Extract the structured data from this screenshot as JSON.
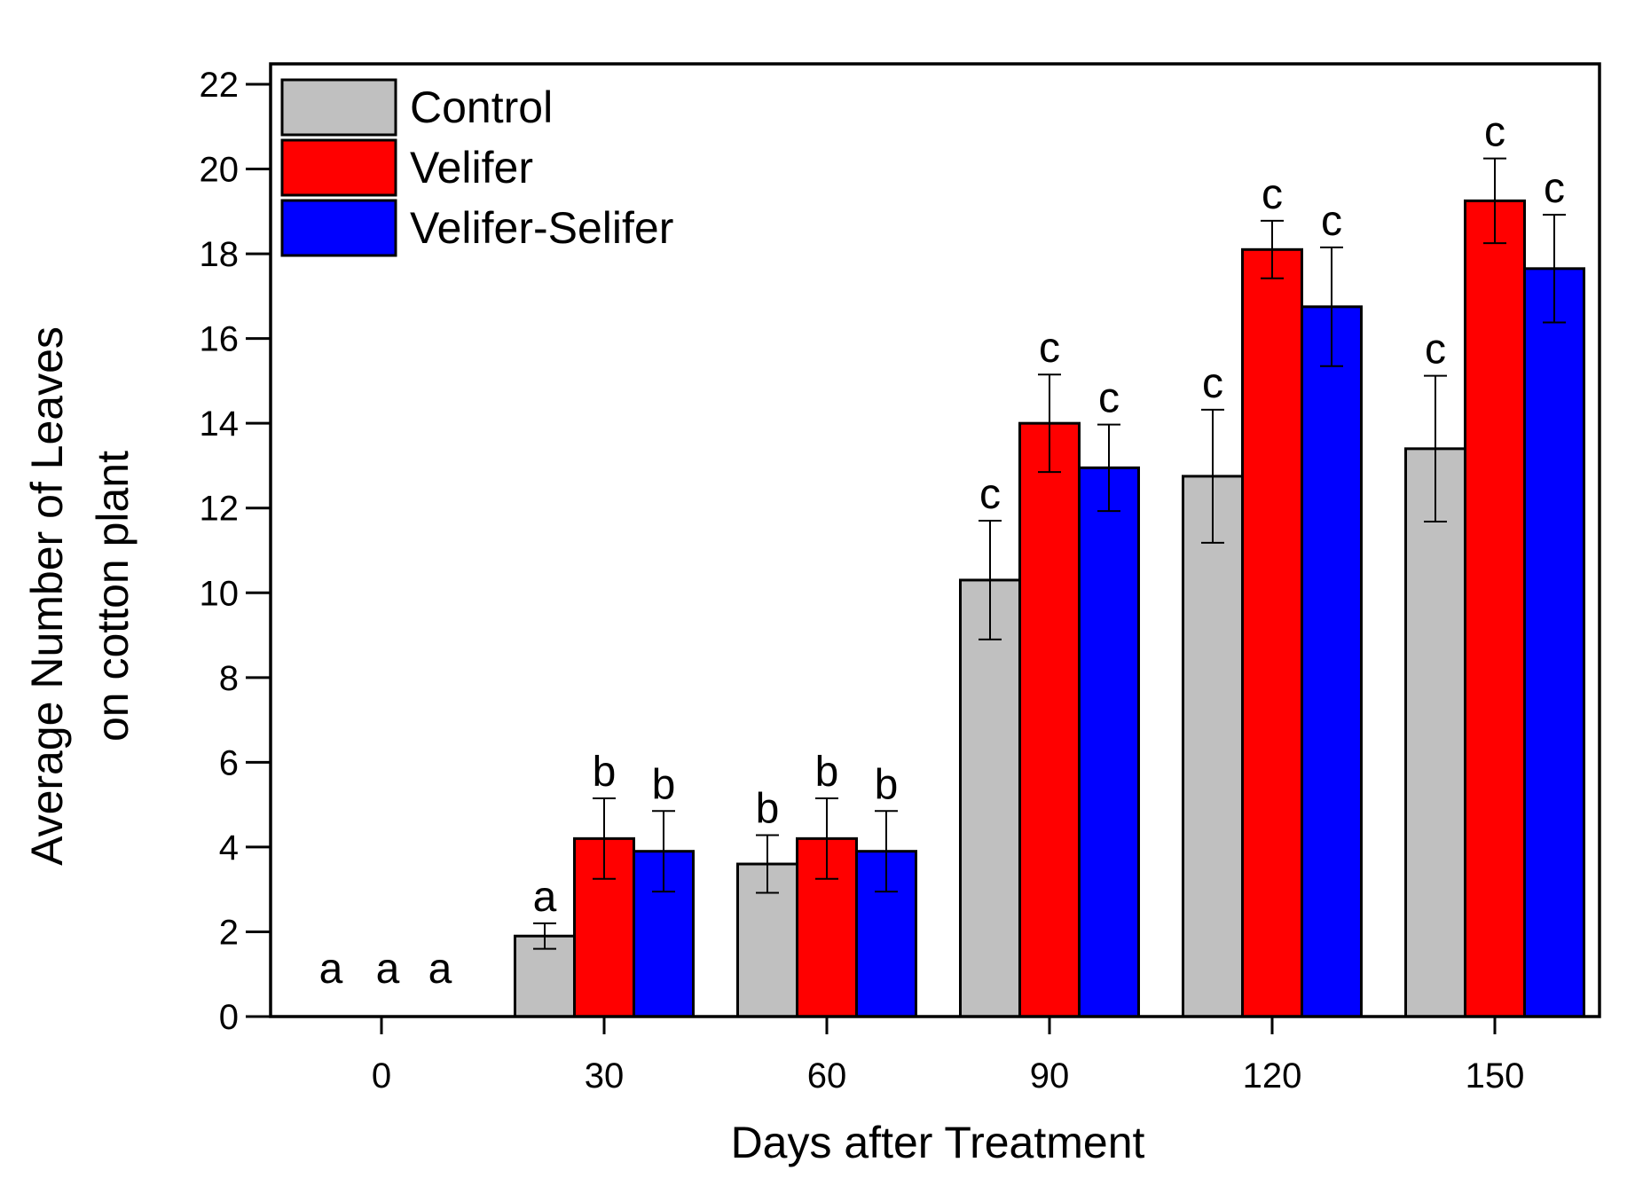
{
  "chart_data": {
    "type": "bar",
    "xlabel": "Days after Treatment",
    "ylabel": [
      "Average Number of Leaves",
      "on cotton plant"
    ],
    "ylim": [
      0,
      22
    ],
    "yticks": [
      0,
      2,
      4,
      6,
      8,
      10,
      12,
      14,
      16,
      18,
      20,
      22
    ],
    "categories": [
      "0",
      "30",
      "60",
      "90",
      "120",
      "150"
    ],
    "legend_position": "top-left",
    "series": [
      {
        "name": "Control",
        "color": "#c0c0c0",
        "values": [
          0,
          1.9,
          3.6,
          10.3,
          12.75,
          13.4
        ],
        "errors": [
          0,
          0.3,
          0.68,
          1.4,
          1.57,
          1.72
        ],
        "letters": [
          "a",
          "a",
          "b",
          "c",
          "c",
          "c"
        ]
      },
      {
        "name": "Velifer",
        "color": "#ff0000",
        "values": [
          0,
          4.2,
          4.2,
          14.0,
          18.1,
          19.25
        ],
        "errors": [
          0,
          0.95,
          0.95,
          1.15,
          0.68,
          1.0
        ],
        "letters": [
          "a",
          "b",
          "b",
          "c",
          "c",
          "c"
        ]
      },
      {
        "name": "Velifer-Selifer",
        "color": "#0000ff",
        "values": [
          0,
          3.9,
          3.9,
          12.95,
          16.75,
          17.65
        ],
        "errors": [
          0,
          0.95,
          0.95,
          1.02,
          1.4,
          1.27
        ],
        "letters": [
          "a",
          "b",
          "b",
          "c",
          "c",
          "c"
        ]
      }
    ]
  }
}
